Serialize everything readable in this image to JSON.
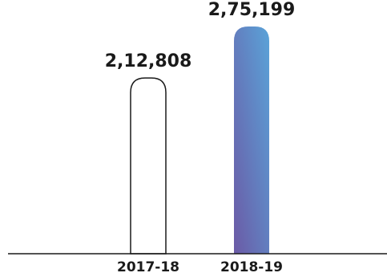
{
  "chart_data": {
    "type": "bar",
    "categories": [
      "2017-18",
      "2018-19"
    ],
    "values": [
      212808,
      275199
    ],
    "value_labels": [
      "2,12,808",
      "2,75,199"
    ],
    "title": "",
    "xlabel": "",
    "ylabel": "",
    "ylim": [
      0,
      280000
    ],
    "grid": false,
    "bar_styles": [
      {
        "fill": "none",
        "stroke": "#1a1a1a"
      },
      {
        "fill": "gradient",
        "gradient_from": "#6b5aa6",
        "gradient_to": "#5aa3d8"
      }
    ]
  }
}
